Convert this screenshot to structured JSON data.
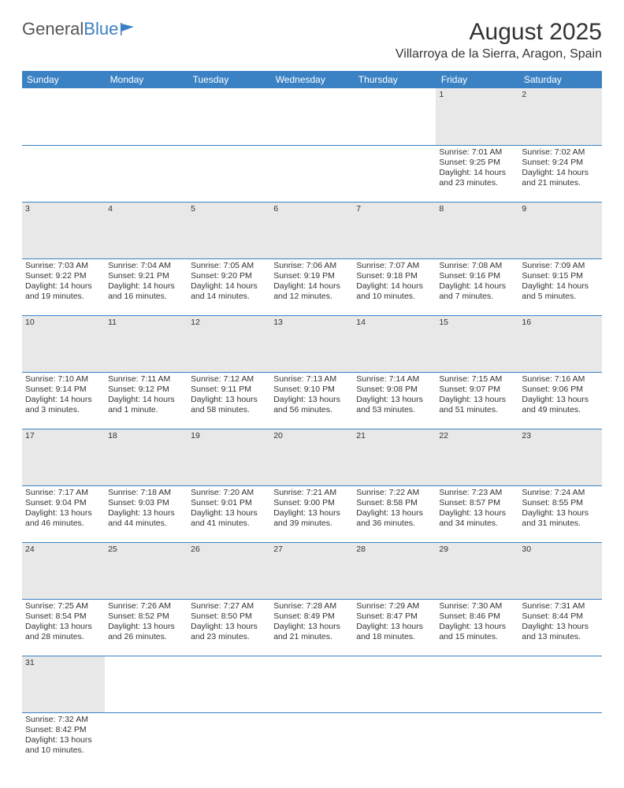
{
  "logo": {
    "text1": "General",
    "text2": "Blue"
  },
  "title": "August 2025",
  "location": "Villarroya de la Sierra, Aragon, Spain",
  "colors": {
    "header_bg": "#3b82c4",
    "header_text": "#ffffff",
    "daynum_bg": "#e8e8e8",
    "border": "#3b82c4",
    "text": "#333333"
  },
  "daysOfWeek": [
    "Sunday",
    "Monday",
    "Tuesday",
    "Wednesday",
    "Thursday",
    "Friday",
    "Saturday"
  ],
  "weeks": [
    [
      null,
      null,
      null,
      null,
      null,
      {
        "n": "1",
        "l1": "Sunrise: 7:01 AM",
        "l2": "Sunset: 9:25 PM",
        "l3": "Daylight: 14 hours",
        "l4": "and 23 minutes."
      },
      {
        "n": "2",
        "l1": "Sunrise: 7:02 AM",
        "l2": "Sunset: 9:24 PM",
        "l3": "Daylight: 14 hours",
        "l4": "and 21 minutes."
      }
    ],
    [
      {
        "n": "3",
        "l1": "Sunrise: 7:03 AM",
        "l2": "Sunset: 9:22 PM",
        "l3": "Daylight: 14 hours",
        "l4": "and 19 minutes."
      },
      {
        "n": "4",
        "l1": "Sunrise: 7:04 AM",
        "l2": "Sunset: 9:21 PM",
        "l3": "Daylight: 14 hours",
        "l4": "and 16 minutes."
      },
      {
        "n": "5",
        "l1": "Sunrise: 7:05 AM",
        "l2": "Sunset: 9:20 PM",
        "l3": "Daylight: 14 hours",
        "l4": "and 14 minutes."
      },
      {
        "n": "6",
        "l1": "Sunrise: 7:06 AM",
        "l2": "Sunset: 9:19 PM",
        "l3": "Daylight: 14 hours",
        "l4": "and 12 minutes."
      },
      {
        "n": "7",
        "l1": "Sunrise: 7:07 AM",
        "l2": "Sunset: 9:18 PM",
        "l3": "Daylight: 14 hours",
        "l4": "and 10 minutes."
      },
      {
        "n": "8",
        "l1": "Sunrise: 7:08 AM",
        "l2": "Sunset: 9:16 PM",
        "l3": "Daylight: 14 hours",
        "l4": "and 7 minutes."
      },
      {
        "n": "9",
        "l1": "Sunrise: 7:09 AM",
        "l2": "Sunset: 9:15 PM",
        "l3": "Daylight: 14 hours",
        "l4": "and 5 minutes."
      }
    ],
    [
      {
        "n": "10",
        "l1": "Sunrise: 7:10 AM",
        "l2": "Sunset: 9:14 PM",
        "l3": "Daylight: 14 hours",
        "l4": "and 3 minutes."
      },
      {
        "n": "11",
        "l1": "Sunrise: 7:11 AM",
        "l2": "Sunset: 9:12 PM",
        "l3": "Daylight: 14 hours",
        "l4": "and 1 minute."
      },
      {
        "n": "12",
        "l1": "Sunrise: 7:12 AM",
        "l2": "Sunset: 9:11 PM",
        "l3": "Daylight: 13 hours",
        "l4": "and 58 minutes."
      },
      {
        "n": "13",
        "l1": "Sunrise: 7:13 AM",
        "l2": "Sunset: 9:10 PM",
        "l3": "Daylight: 13 hours",
        "l4": "and 56 minutes."
      },
      {
        "n": "14",
        "l1": "Sunrise: 7:14 AM",
        "l2": "Sunset: 9:08 PM",
        "l3": "Daylight: 13 hours",
        "l4": "and 53 minutes."
      },
      {
        "n": "15",
        "l1": "Sunrise: 7:15 AM",
        "l2": "Sunset: 9:07 PM",
        "l3": "Daylight: 13 hours",
        "l4": "and 51 minutes."
      },
      {
        "n": "16",
        "l1": "Sunrise: 7:16 AM",
        "l2": "Sunset: 9:06 PM",
        "l3": "Daylight: 13 hours",
        "l4": "and 49 minutes."
      }
    ],
    [
      {
        "n": "17",
        "l1": "Sunrise: 7:17 AM",
        "l2": "Sunset: 9:04 PM",
        "l3": "Daylight: 13 hours",
        "l4": "and 46 minutes."
      },
      {
        "n": "18",
        "l1": "Sunrise: 7:18 AM",
        "l2": "Sunset: 9:03 PM",
        "l3": "Daylight: 13 hours",
        "l4": "and 44 minutes."
      },
      {
        "n": "19",
        "l1": "Sunrise: 7:20 AM",
        "l2": "Sunset: 9:01 PM",
        "l3": "Daylight: 13 hours",
        "l4": "and 41 minutes."
      },
      {
        "n": "20",
        "l1": "Sunrise: 7:21 AM",
        "l2": "Sunset: 9:00 PM",
        "l3": "Daylight: 13 hours",
        "l4": "and 39 minutes."
      },
      {
        "n": "21",
        "l1": "Sunrise: 7:22 AM",
        "l2": "Sunset: 8:58 PM",
        "l3": "Daylight: 13 hours",
        "l4": "and 36 minutes."
      },
      {
        "n": "22",
        "l1": "Sunrise: 7:23 AM",
        "l2": "Sunset: 8:57 PM",
        "l3": "Daylight: 13 hours",
        "l4": "and 34 minutes."
      },
      {
        "n": "23",
        "l1": "Sunrise: 7:24 AM",
        "l2": "Sunset: 8:55 PM",
        "l3": "Daylight: 13 hours",
        "l4": "and 31 minutes."
      }
    ],
    [
      {
        "n": "24",
        "l1": "Sunrise: 7:25 AM",
        "l2": "Sunset: 8:54 PM",
        "l3": "Daylight: 13 hours",
        "l4": "and 28 minutes."
      },
      {
        "n": "25",
        "l1": "Sunrise: 7:26 AM",
        "l2": "Sunset: 8:52 PM",
        "l3": "Daylight: 13 hours",
        "l4": "and 26 minutes."
      },
      {
        "n": "26",
        "l1": "Sunrise: 7:27 AM",
        "l2": "Sunset: 8:50 PM",
        "l3": "Daylight: 13 hours",
        "l4": "and 23 minutes."
      },
      {
        "n": "27",
        "l1": "Sunrise: 7:28 AM",
        "l2": "Sunset: 8:49 PM",
        "l3": "Daylight: 13 hours",
        "l4": "and 21 minutes."
      },
      {
        "n": "28",
        "l1": "Sunrise: 7:29 AM",
        "l2": "Sunset: 8:47 PM",
        "l3": "Daylight: 13 hours",
        "l4": "and 18 minutes."
      },
      {
        "n": "29",
        "l1": "Sunrise: 7:30 AM",
        "l2": "Sunset: 8:46 PM",
        "l3": "Daylight: 13 hours",
        "l4": "and 15 minutes."
      },
      {
        "n": "30",
        "l1": "Sunrise: 7:31 AM",
        "l2": "Sunset: 8:44 PM",
        "l3": "Daylight: 13 hours",
        "l4": "and 13 minutes."
      }
    ],
    [
      {
        "n": "31",
        "l1": "Sunrise: 7:32 AM",
        "l2": "Sunset: 8:42 PM",
        "l3": "Daylight: 13 hours",
        "l4": "and 10 minutes."
      },
      null,
      null,
      null,
      null,
      null,
      null
    ]
  ]
}
